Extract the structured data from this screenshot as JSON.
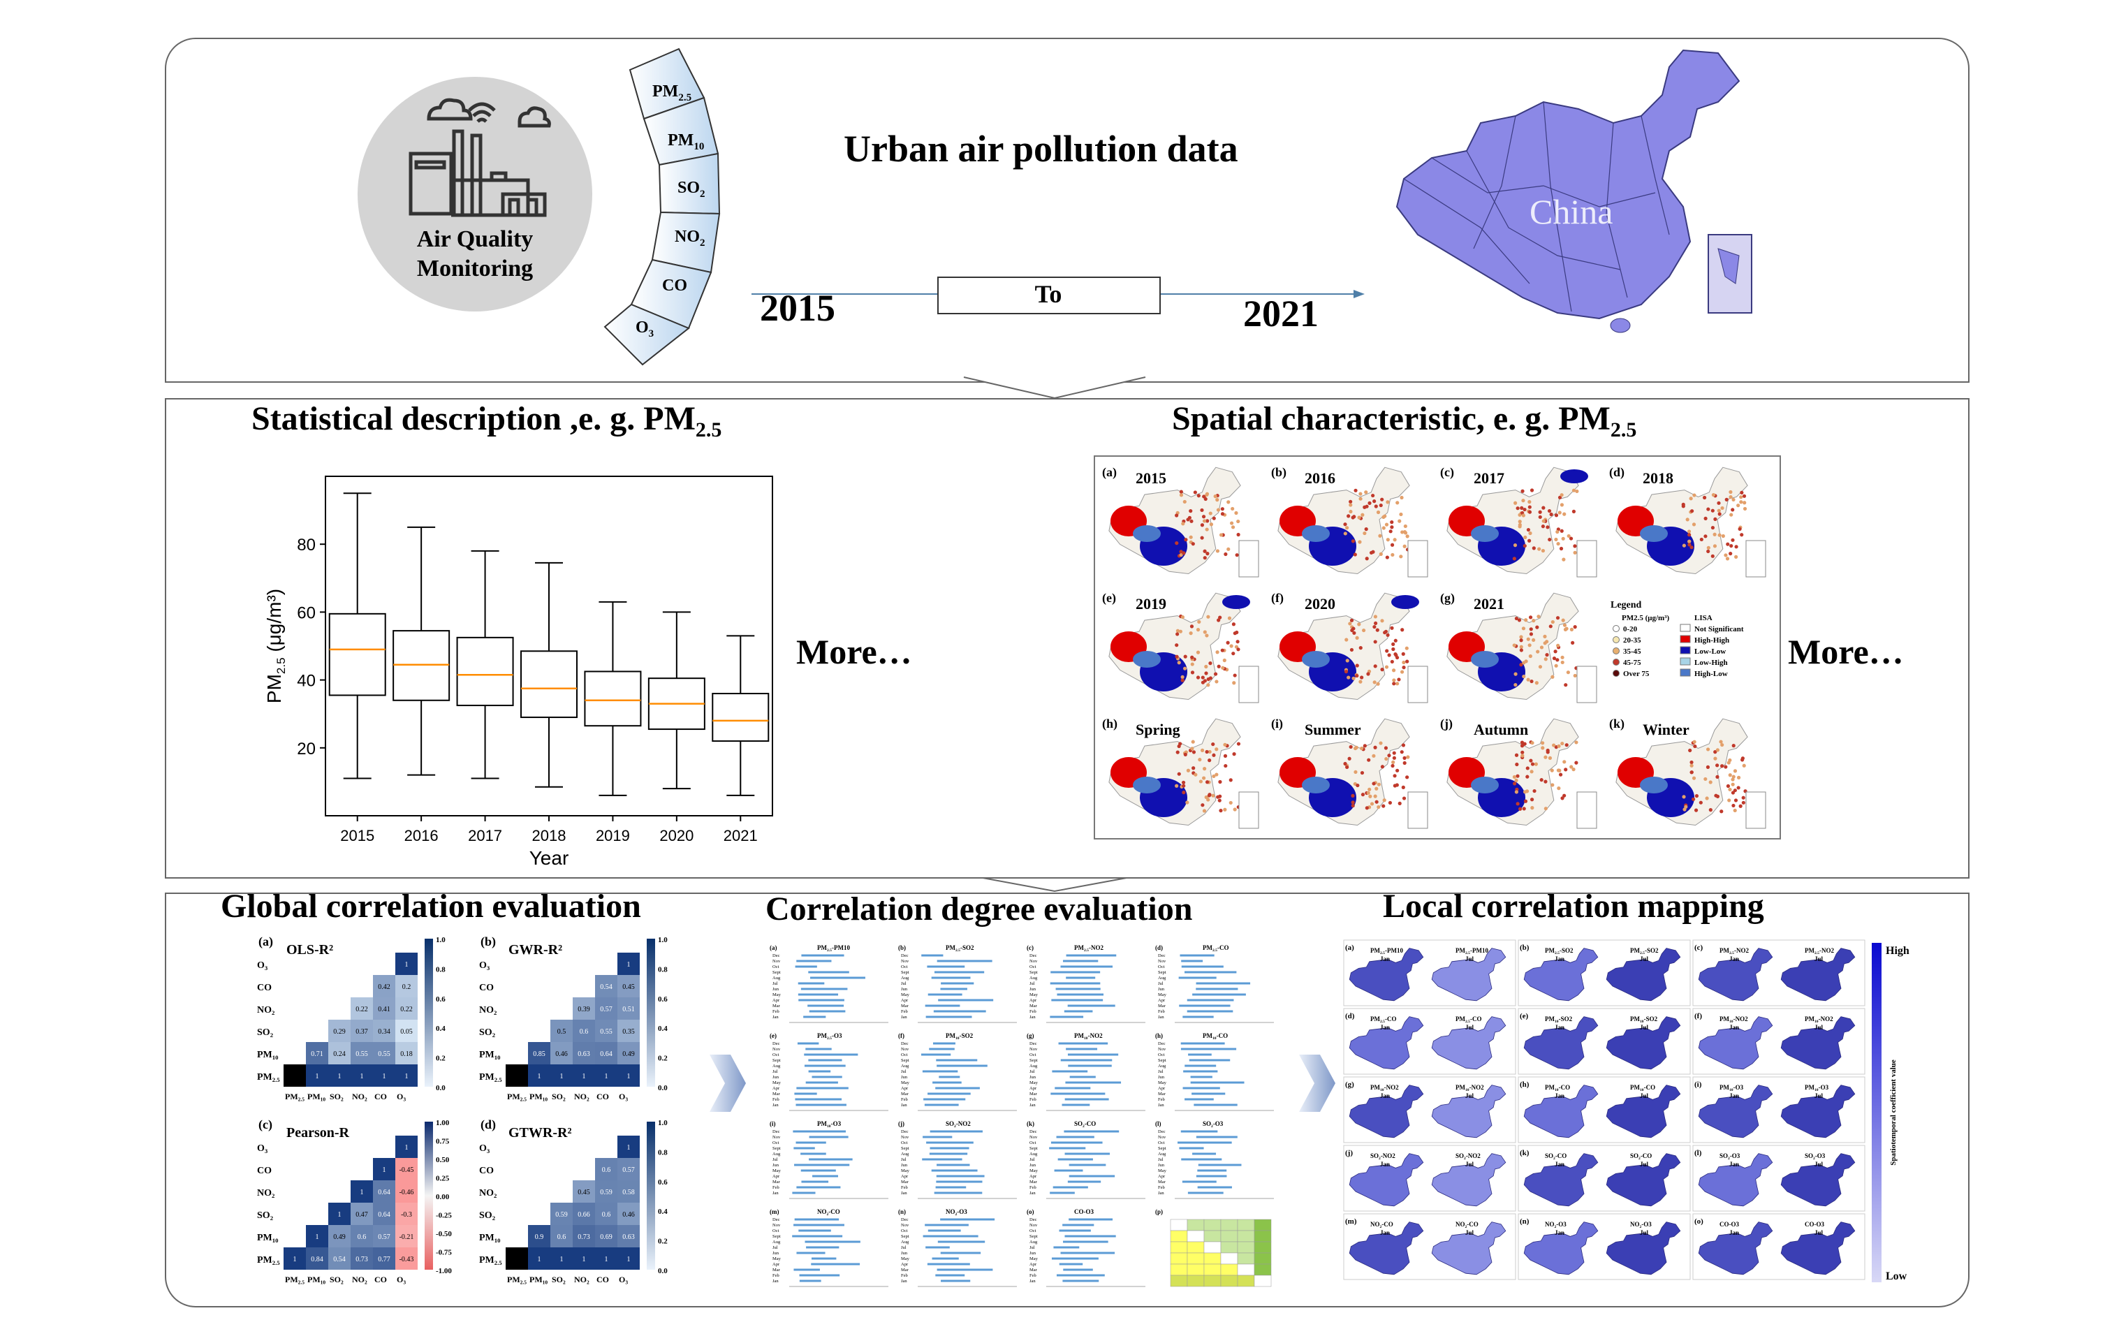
{
  "panel1": {
    "monitor_line1": "Air Quality",
    "monitor_line2": "Monitoring",
    "pollutants": [
      "PM2.5",
      "PM10",
      "SO2",
      "NO2",
      "CO",
      "O3"
    ],
    "headline": "Urban air pollution data",
    "year_start": "2015",
    "to_label": "To",
    "year_end": "2021",
    "map_label": "China"
  },
  "panel2": {
    "stat_title": "Statistical description ,e. g. PM",
    "stat_title_sub": "2.5",
    "spatial_title": "Spatial characteristic, e. g. PM",
    "spatial_title_sub": "2.5",
    "more_left": "More…",
    "more_right": "More…",
    "map_panels": [
      {
        "letter": "(a)",
        "label": "2015"
      },
      {
        "letter": "(b)",
        "label": "2016"
      },
      {
        "letter": "(c)",
        "label": "2017"
      },
      {
        "letter": "(d)",
        "label": "2018"
      },
      {
        "letter": "(e)",
        "label": "2019"
      },
      {
        "letter": "(f)",
        "label": "2020"
      },
      {
        "letter": "(g)",
        "label": "2021"
      },
      {
        "letter": "(h)",
        "label": "Spring"
      },
      {
        "letter": "(i)",
        "label": "Summer"
      },
      {
        "letter": "(j)",
        "label": "Autumn"
      },
      {
        "letter": "(k)",
        "label": "Winter"
      }
    ],
    "legend": {
      "title": "Legend",
      "pm_header": "PM2.5 (μg/m³)",
      "lisa_header": "LISA",
      "pm_classes": [
        "0-20",
        "20-35",
        "35-45",
        "45-75",
        "Over 75"
      ],
      "lisa_classes": [
        "Not Significant",
        "High-High",
        "Low-Low",
        "Low-High",
        "High-Low"
      ],
      "colors": {
        "high_high": "#e00000",
        "low_low": "#1010b0",
        "low_high": "#a8d4e6",
        "high_low": "#4a78c8"
      }
    }
  },
  "chart_data": {
    "type": "boxplot",
    "categories": [
      "2015",
      "2016",
      "2017",
      "2018",
      "2019",
      "2020",
      "2021"
    ],
    "boxes": [
      {
        "whisker_low": 11,
        "q1": 35.5,
        "median": 49,
        "q3": 59.5,
        "whisker_high": 95
      },
      {
        "whisker_low": 12,
        "q1": 34,
        "median": 44.5,
        "q3": 54.5,
        "whisker_high": 85
      },
      {
        "whisker_low": 11,
        "q1": 32.5,
        "median": 41.5,
        "q3": 52.5,
        "whisker_high": 78
      },
      {
        "whisker_low": 8.5,
        "q1": 29,
        "median": 37.5,
        "q3": 48.5,
        "whisker_high": 74.5
      },
      {
        "whisker_low": 6,
        "q1": 26.5,
        "median": 34,
        "q3": 42.5,
        "whisker_high": 63
      },
      {
        "whisker_low": 8,
        "q1": 25.5,
        "median": 33,
        "q3": 40.5,
        "whisker_high": 60
      },
      {
        "whisker_low": 6,
        "q1": 22,
        "median": 28,
        "q3": 36,
        "whisker_high": 53
      }
    ],
    "xlabel": "Year",
    "ylabel": "PM2.5 (μg/m³)",
    "yticks": [
      20,
      40,
      60,
      80
    ],
    "ylim": [
      0,
      100
    ],
    "median_color": "#ff8c00"
  },
  "panel3": {
    "global_title": "Global correlation evaluation",
    "degree_title": "Correlation degree evaluation",
    "local_title": "Local correlation mapping",
    "matrices": [
      {
        "letter": "(a)",
        "name": "OLS-R²",
        "vals": [
          "1",
          "0.2",
          "0.22",
          "0.05",
          "0.18",
          "1",
          "0.42",
          "0.41",
          "0.34",
          "0.55",
          "1",
          "0.22",
          "0.37",
          "0.55",
          "1",
          "0.29",
          "0.24",
          "1",
          "0.71",
          "1"
        ],
        "cbar": [
          "1.0",
          "0.8",
          "0.6",
          "0.4",
          "0.2",
          "0.0"
        ]
      },
      {
        "letter": "(b)",
        "name": "GWR-R²",
        "vals": [
          "1",
          "0.45",
          "0.51",
          "0.35",
          "0.49",
          "1",
          "0.54",
          "0.57",
          "0.55",
          "0.64",
          "1",
          "0.39",
          "0.6",
          "0.63",
          "1",
          "0.5",
          "0.46",
          "1",
          "0.85",
          "1"
        ],
        "cbar": [
          "1.0",
          "0.8",
          "0.6",
          "0.4",
          "0.2",
          "0.0"
        ]
      },
      {
        "letter": "(c)",
        "name": "Pearson-R",
        "vals": [
          "1",
          "-0.45",
          "-0.46",
          "-0.3",
          "-0.21",
          "-0.43",
          "1",
          "0.64",
          "0.64",
          "0.57",
          "0.77",
          "1",
          "0.47",
          "0.6",
          "0.73",
          "1",
          "0.49",
          "0.54",
          "1",
          "0.84",
          "1"
        ],
        "cbar": [
          "1.00",
          "0.75",
          "0.50",
          "0.25",
          "0.00",
          "-0.25",
          "-0.50",
          "-0.75",
          "-1.00"
        ]
      },
      {
        "letter": "(d)",
        "name": "GTWR-R²",
        "vals": [
          "1",
          "0.57",
          "0.58",
          "0.46",
          "0.63",
          "1",
          "0.6",
          "0.59",
          "0.6",
          "0.69",
          "1",
          "0.45",
          "0.66",
          "0.73",
          "1",
          "0.59",
          "0.6",
          "1",
          "0.9",
          "1"
        ],
        "cbar": [
          "1.0",
          "0.8",
          "0.6",
          "0.4",
          "0.2",
          "0.0"
        ]
      }
    ],
    "matrix_labels": [
      "PM2.5",
      "PM10",
      "SO2",
      "NO2",
      "CO",
      "O3"
    ],
    "degree_panels": [
      {
        "letter": "(a)",
        "label": "PM2.5-PM10"
      },
      {
        "letter": "(b)",
        "label": "PM2.5-SO2"
      },
      {
        "letter": "(c)",
        "label": "PM2.5-NO2"
      },
      {
        "letter": "(d)",
        "label": "PM2.5-CO"
      },
      {
        "letter": "(e)",
        "label": "PM2.5-O3"
      },
      {
        "letter": "(f)",
        "label": "PM10-SO2"
      },
      {
        "letter": "(g)",
        "label": "PM10-NO2"
      },
      {
        "letter": "(h)",
        "label": "PM10-CO"
      },
      {
        "letter": "(i)",
        "label": "PM10-O3"
      },
      {
        "letter": "(j)",
        "label": "SO2-NO2"
      },
      {
        "letter": "(k)",
        "label": "SO2-CO"
      },
      {
        "letter": "(l)",
        "label": "SO2-O3"
      },
      {
        "letter": "(m)",
        "label": "NO2-CO"
      },
      {
        "letter": "(n)",
        "label": "NO2-O3"
      },
      {
        "letter": "(o)",
        "label": "CO-O3"
      },
      {
        "letter": "(p)",
        "label": ""
      }
    ],
    "months": [
      "Dec",
      "Nov",
      "Oct",
      "Sept",
      "Aug",
      "Jul",
      "Jun",
      "May",
      "Apr",
      "Mar",
      "Feb",
      "Jan"
    ],
    "local_panels": [
      {
        "letter": "(a)",
        "label": "PM2.5-PM10"
      },
      {
        "letter": "(b)",
        "label": "PM2.5-SO2"
      },
      {
        "letter": "(c)",
        "label": "PM2.5-NO2"
      },
      {
        "letter": "(d)",
        "label": "PM2.5-CO"
      },
      {
        "letter": "(e)",
        "label": "PM10-SO2"
      },
      {
        "letter": "(f)",
        "label": "PM10-NO2"
      },
      {
        "letter": "(g)",
        "label": "PM10-NO2"
      },
      {
        "letter": "(h)",
        "label": "PM10-CO"
      },
      {
        "letter": "(i)",
        "label": "PM10-O3"
      },
      {
        "letter": "(j)",
        "label": "SO2-NO2"
      },
      {
        "letter": "(k)",
        "label": "SO2-CO"
      },
      {
        "letter": "(l)",
        "label": "SO2-O3"
      },
      {
        "letter": "(m)",
        "label": "NO2-CO"
      },
      {
        "letter": "(n)",
        "label": "NO2-O3"
      },
      {
        "letter": "(o)",
        "label": "CO-O3"
      }
    ],
    "month_a": "Jan",
    "month_b": "Jul",
    "scale_high": "High",
    "scale_low": "Low",
    "scale_title": "Spatiotemporal coefficient value"
  }
}
